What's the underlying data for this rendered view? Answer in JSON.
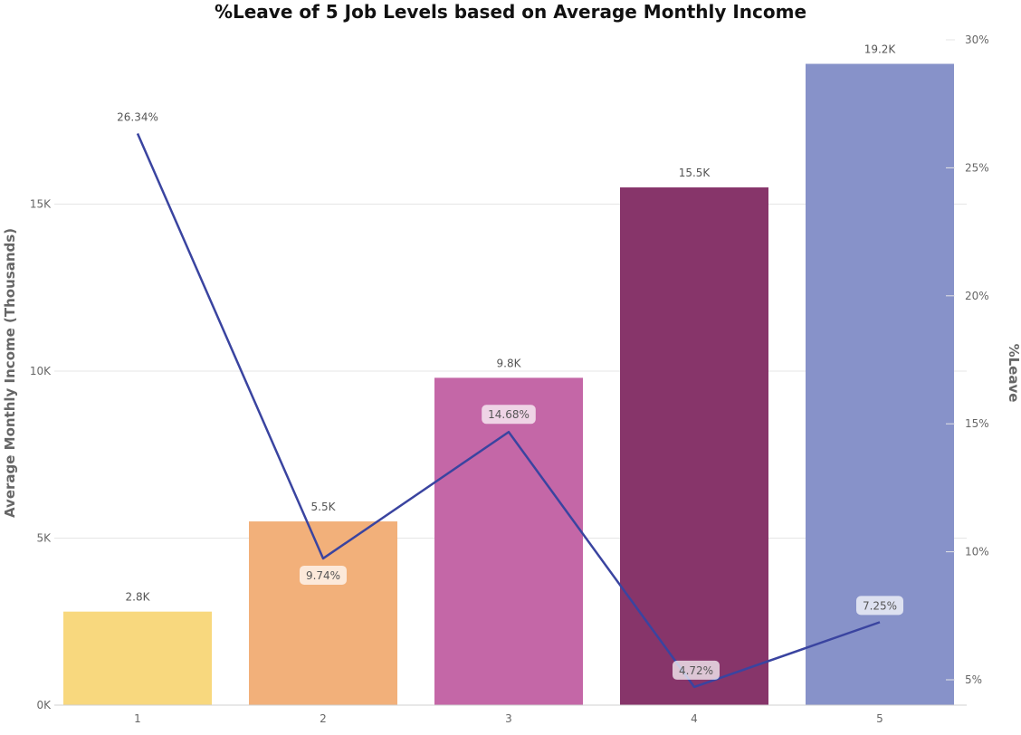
{
  "chart_data": {
    "type": "bar+line",
    "title": "%Leave of 5 Job Levels based on Average Monthly Income",
    "categories": [
      "1",
      "2",
      "3",
      "4",
      "5"
    ],
    "bars": {
      "name": "Average Monthly Income (Thousands)",
      "values": [
        2.8,
        5.5,
        9.8,
        15.5,
        19.2
      ],
      "labels": [
        "2.8K",
        "5.5K",
        "9.8K",
        "15.5K",
        "19.2K"
      ],
      "colors": [
        "#F8D87E",
        "#F2B07A",
        "#C467A7",
        "#87356A",
        "#8792C9"
      ]
    },
    "line": {
      "name": "%Leave",
      "values": [
        26.34,
        9.74,
        14.68,
        4.72,
        7.25
      ],
      "labels": [
        "26.34%",
        "9.74%",
        "14.68%",
        "4.72%",
        "7.25%"
      ],
      "color": "#3A44A0"
    },
    "y_left": {
      "label": "Average Monthly Income (Thousands)",
      "ticks": [
        0,
        5,
        10,
        15
      ],
      "tick_labels": [
        "0K",
        "5K",
        "10K",
        "15K"
      ],
      "range": [
        0,
        20
      ]
    },
    "y_right": {
      "label": "%Leave",
      "ticks": [
        5,
        10,
        15,
        20,
        25,
        30
      ],
      "tick_labels": [
        "5%",
        "10%",
        "15%",
        "20%",
        "25%",
        "30%"
      ],
      "range": [
        4.2,
        30
      ]
    },
    "grid": true
  }
}
